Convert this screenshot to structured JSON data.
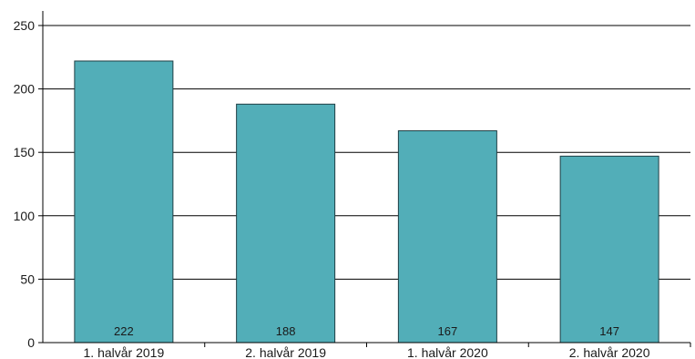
{
  "chart_data": {
    "type": "bar",
    "title": "",
    "xlabel": "",
    "ylabel": "",
    "categories": [
      "1. halvår 2019",
      "2. halvår 2019",
      "1. halvår 2020",
      "2. halvår 2020"
    ],
    "values": [
      222,
      188,
      167,
      147
    ],
    "data_labels": [
      "222",
      "188",
      "167",
      "147"
    ],
    "ylim": [
      0,
      250
    ],
    "yticks": [
      0,
      50,
      100,
      150,
      200,
      250
    ],
    "ytick_labels": [
      "0",
      "50",
      "100",
      "150",
      "200",
      "250"
    ],
    "grid": true,
    "legend": "none",
    "bar_color": "#52AEB8",
    "bar_edge_color": "#1f3f44",
    "grid_color": "#000000"
  }
}
